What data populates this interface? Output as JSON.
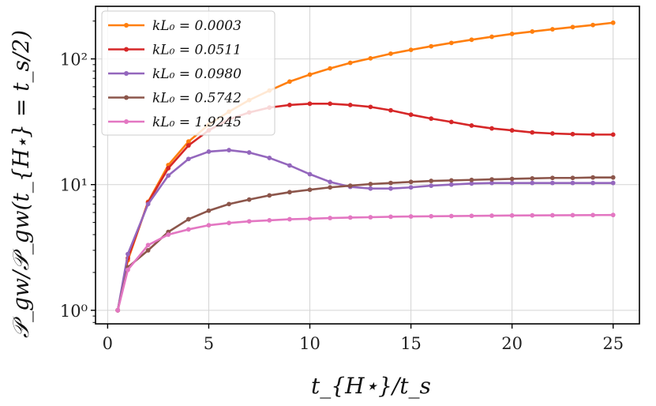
{
  "chart_data": {
    "type": "line",
    "title": "",
    "xlabel": "t_{H⋆}/t_s",
    "ylabel": "𝒫_gw/𝒫_gw(t_{H⋆} = t_s/2)",
    "xscale": "linear",
    "yscale": "log",
    "xlim": [
      -0.6,
      26.3
    ],
    "ylim": [
      0.78,
      262
    ],
    "xticks": [
      0,
      5,
      10,
      15,
      20,
      25
    ],
    "yticks": [
      {
        "value": 1,
        "label": "10⁰"
      },
      {
        "value": 10,
        "label": "10¹"
      },
      {
        "value": 100,
        "label": "10²"
      }
    ],
    "grid": true,
    "legend_position": "top-left",
    "x": [
      0.5,
      1,
      2,
      3,
      4,
      5,
      6,
      7,
      8,
      9,
      10,
      11,
      12,
      13,
      14,
      15,
      16,
      17,
      18,
      19,
      20,
      21,
      22,
      23,
      24,
      25
    ],
    "series": [
      {
        "name": "kL₀ = 0.0003",
        "color": "#ff7f0e",
        "values": [
          1,
          2.5,
          7.3,
          14.3,
          22,
          30,
          38,
          47,
          56,
          66,
          75,
          84,
          93,
          101,
          110,
          118,
          126,
          134,
          142,
          150,
          158,
          165,
          172,
          179,
          186,
          194
        ]
      },
      {
        "name": "kL₀ = 0.0511",
        "color": "#d62728",
        "values": [
          1,
          2.6,
          7.2,
          13.5,
          20.5,
          27,
          33,
          37.5,
          41,
          43,
          44,
          44,
          43,
          41.5,
          39,
          36,
          33.5,
          31.5,
          29.5,
          28,
          27,
          26,
          25.5,
          25.2,
          25,
          25
        ]
      },
      {
        "name": "kL₀ = 0.0980",
        "color": "#9467bd",
        "values": [
          1,
          2.8,
          7,
          11.8,
          16,
          18.3,
          18.8,
          18,
          16.3,
          14.2,
          12.1,
          10.5,
          9.6,
          9.3,
          9.3,
          9.5,
          9.8,
          10,
          10.2,
          10.3,
          10.3,
          10.3,
          10.3,
          10.3,
          10.3,
          10.3
        ]
      },
      {
        "name": "kL₀ = 0.5742",
        "color": "#8c564b",
        "values": [
          1,
          2.2,
          3,
          4.2,
          5.3,
          6.2,
          7,
          7.6,
          8.2,
          8.7,
          9.1,
          9.5,
          9.8,
          10.1,
          10.3,
          10.5,
          10.7,
          10.8,
          10.9,
          11,
          11.1,
          11.2,
          11.3,
          11.3,
          11.4,
          11.4
        ]
      },
      {
        "name": "kL₀ = 1.9245",
        "color": "#e377c2",
        "values": [
          1,
          2.1,
          3.3,
          4,
          4.4,
          4.75,
          4.95,
          5.1,
          5.2,
          5.3,
          5.35,
          5.42,
          5.47,
          5.5,
          5.55,
          5.58,
          5.6,
          5.62,
          5.64,
          5.66,
          5.68,
          5.69,
          5.7,
          5.71,
          5.72,
          5.73
        ]
      }
    ]
  }
}
